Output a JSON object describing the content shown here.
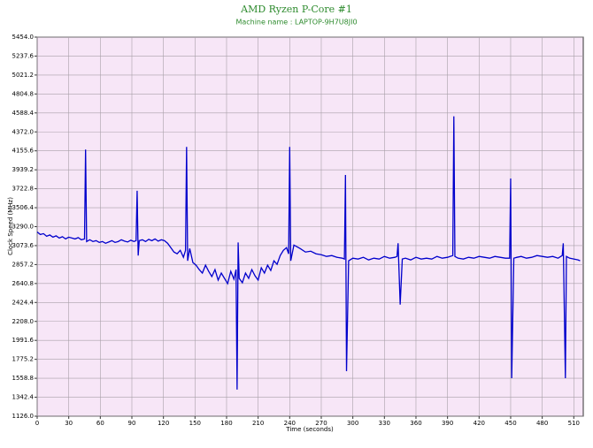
{
  "chart_data": {
    "type": "line",
    "title": "AMD Ryzen P-Core #1",
    "subtitle": "Machine name : LAPTOP-9H7U8JI0",
    "x_label": "Time (seconds)",
    "y_label": "Clock Speed (MHz)",
    "xlim": [
      0,
      519
    ],
    "ylim": [
      1126,
      5454
    ],
    "xticks": [
      0,
      30,
      60,
      90,
      120,
      150,
      180,
      210,
      240,
      270,
      300,
      330,
      360,
      390,
      420,
      450,
      480,
      510
    ],
    "yticks": [
      {
        "value": 1126,
        "label": "1126.0"
      },
      1342.4,
      1558.8,
      1775.2,
      1991.6,
      {
        "value": 2208,
        "label": "2208.0"
      },
      2424.4,
      2640.8,
      2857.2,
      3073.6,
      {
        "value": 3290,
        "label": "3290.0"
      },
      3506.4,
      3722.8,
      3939.2,
      4155.6,
      {
        "value": 4372,
        "label": "4372.0"
      },
      4588.4,
      4804.8,
      5021.2,
      5237.6,
      {
        "value": 5454,
        "label": "5454.0"
      }
    ],
    "grid": true,
    "x": [
      0,
      3,
      6,
      9,
      12,
      15,
      18,
      21,
      24,
      27,
      30,
      33,
      36,
      39,
      42,
      45,
      46,
      47,
      50,
      53,
      56,
      59,
      62,
      65,
      68,
      71,
      74,
      77,
      80,
      83,
      86,
      89,
      92,
      94,
      95,
      96,
      97,
      100,
      103,
      106,
      109,
      112,
      115,
      118,
      121,
      124,
      127,
      130,
      133,
      136,
      139,
      141,
      142,
      143,
      145,
      148,
      151,
      154,
      157,
      160,
      163,
      166,
      169,
      172,
      175,
      178,
      181,
      184,
      187,
      189,
      190,
      191,
      192,
      195,
      198,
      201,
      204,
      207,
      210,
      213,
      216,
      219,
      222,
      225,
      228,
      231,
      234,
      237,
      239,
      240,
      241,
      244,
      247,
      250,
      255,
      260,
      265,
      270,
      275,
      280,
      285,
      290,
      292,
      293,
      294,
      296,
      300,
      305,
      310,
      315,
      320,
      325,
      330,
      335,
      340,
      342,
      343,
      345,
      347,
      350,
      355,
      360,
      365,
      370,
      375,
      380,
      385,
      390,
      395,
      396,
      397,
      400,
      405,
      410,
      415,
      420,
      425,
      430,
      435,
      440,
      445,
      449,
      450,
      451,
      453,
      456,
      460,
      465,
      470,
      475,
      480,
      485,
      490,
      495,
      499,
      500,
      502,
      503,
      506,
      510,
      514,
      516
    ],
    "series": [
      {
        "name": "Clock Speed",
        "color": "#0000cc",
        "values": [
          3230,
          3200,
          3210,
          3180,
          3195,
          3170,
          3185,
          3160,
          3175,
          3150,
          3170,
          3160,
          3150,
          3165,
          3140,
          3150,
          4170,
          3120,
          3140,
          3120,
          3130,
          3110,
          3120,
          3100,
          3115,
          3130,
          3110,
          3120,
          3140,
          3125,
          3115,
          3135,
          3120,
          3130,
          3700,
          2960,
          3130,
          3140,
          3120,
          3145,
          3130,
          3150,
          3125,
          3140,
          3130,
          3100,
          3050,
          3000,
          2980,
          3020,
          2940,
          3020,
          4200,
          2900,
          3040,
          2880,
          2850,
          2800,
          2760,
          2850,
          2780,
          2720,
          2800,
          2680,
          2760,
          2700,
          2640,
          2780,
          2690,
          2800,
          1430,
          3110,
          2700,
          2650,
          2760,
          2700,
          2800,
          2730,
          2680,
          2820,
          2760,
          2850,
          2790,
          2900,
          2860,
          2960,
          3020,
          3050,
          2980,
          4200,
          2900,
          3080,
          3060,
          3040,
          3000,
          3010,
          2980,
          2970,
          2950,
          2960,
          2940,
          2930,
          2920,
          3880,
          1640,
          2900,
          2930,
          2920,
          2940,
          2910,
          2930,
          2920,
          2950,
          2930,
          2940,
          2950,
          3100,
          2400,
          2920,
          2930,
          2910,
          2940,
          2920,
          2930,
          2920,
          2950,
          2930,
          2940,
          2960,
          4550,
          2950,
          2930,
          2920,
          2940,
          2930,
          2950,
          2940,
          2930,
          2950,
          2940,
          2930,
          2930,
          3840,
          1560,
          2930,
          2940,
          2950,
          2930,
          2940,
          2960,
          2950,
          2940,
          2950,
          2930,
          2960,
          3100,
          1560,
          2950,
          2930,
          2920,
          2910,
          2900
        ]
      }
    ]
  }
}
